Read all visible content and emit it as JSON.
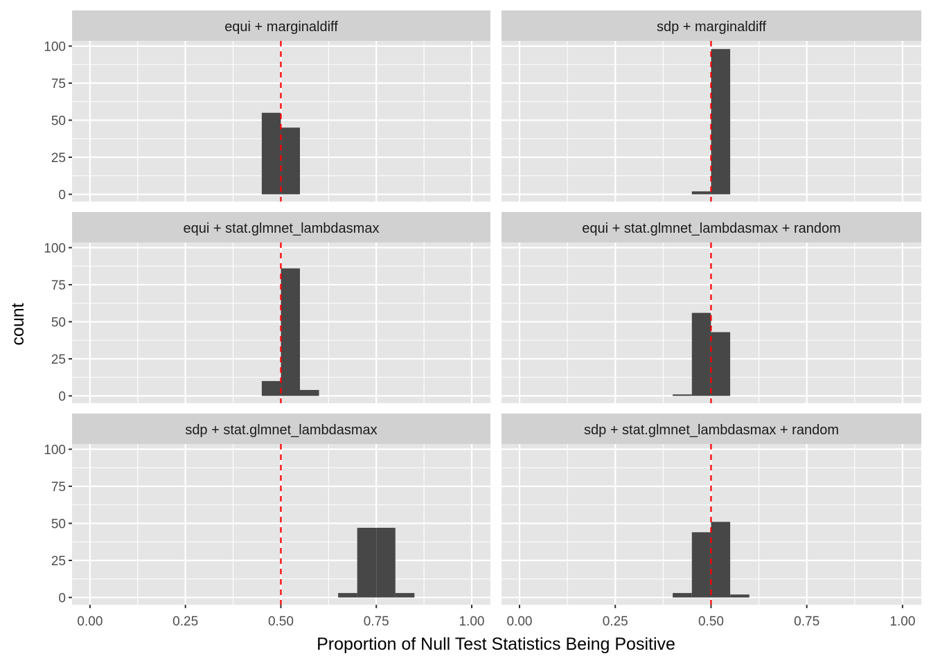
{
  "chart_data": {
    "type": "bar",
    "subtype": "faceted-histogram",
    "xlabel": "Proportion of Null Test Statistics Being Positive",
    "ylabel": "count",
    "xlim": [
      -0.047,
      1.049
    ],
    "ylim": [
      -4.9,
      103.5
    ],
    "x_ticks": [
      0,
      0.25,
      0.5,
      0.75,
      1.0
    ],
    "x_tick_labels": [
      "0.00",
      "0.25",
      "0.50",
      "0.75",
      "1.00"
    ],
    "y_ticks": [
      0,
      25,
      50,
      75,
      100
    ],
    "y_tick_labels": [
      "0",
      "25",
      "50",
      "75",
      "100"
    ],
    "bin_width": 0.05,
    "reference_line": {
      "x": 0.5,
      "color": "#ff0000",
      "style": "dashed"
    },
    "bar_color": "#474747",
    "panel_background": "#e5e5e5",
    "strip_background": "#d1d1d1",
    "grid": true,
    "panels": [
      {
        "title": "equi + marginaldiff",
        "bins": [
          {
            "x0": 0.45,
            "x1": 0.5,
            "count": 55
          },
          {
            "x0": 0.5,
            "x1": 0.55,
            "count": 45
          }
        ]
      },
      {
        "title": "sdp + marginaldiff",
        "bins": [
          {
            "x0": 0.45,
            "x1": 0.5,
            "count": 2
          },
          {
            "x0": 0.5,
            "x1": 0.55,
            "count": 98
          }
        ]
      },
      {
        "title": "equi + stat.glmnet_lambdasmax",
        "bins": [
          {
            "x0": 0.45,
            "x1": 0.5,
            "count": 10
          },
          {
            "x0": 0.5,
            "x1": 0.55,
            "count": 86
          },
          {
            "x0": 0.55,
            "x1": 0.6,
            "count": 4
          }
        ]
      },
      {
        "title": "equi + stat.glmnet_lambdasmax + random",
        "bins": [
          {
            "x0": 0.4,
            "x1": 0.45,
            "count": 1
          },
          {
            "x0": 0.45,
            "x1": 0.5,
            "count": 56
          },
          {
            "x0": 0.5,
            "x1": 0.55,
            "count": 43
          }
        ]
      },
      {
        "title": "sdp + stat.glmnet_lambdasmax",
        "bins": [
          {
            "x0": 0.65,
            "x1": 0.7,
            "count": 3
          },
          {
            "x0": 0.7,
            "x1": 0.75,
            "count": 47
          },
          {
            "x0": 0.75,
            "x1": 0.8,
            "count": 47
          },
          {
            "x0": 0.8,
            "x1": 0.85,
            "count": 3
          }
        ]
      },
      {
        "title": "sdp + stat.glmnet_lambdasmax + random",
        "bins": [
          {
            "x0": 0.4,
            "x1": 0.45,
            "count": 3
          },
          {
            "x0": 0.45,
            "x1": 0.5,
            "count": 44
          },
          {
            "x0": 0.5,
            "x1": 0.55,
            "count": 51
          },
          {
            "x0": 0.55,
            "x1": 0.6,
            "count": 2
          }
        ]
      }
    ]
  }
}
